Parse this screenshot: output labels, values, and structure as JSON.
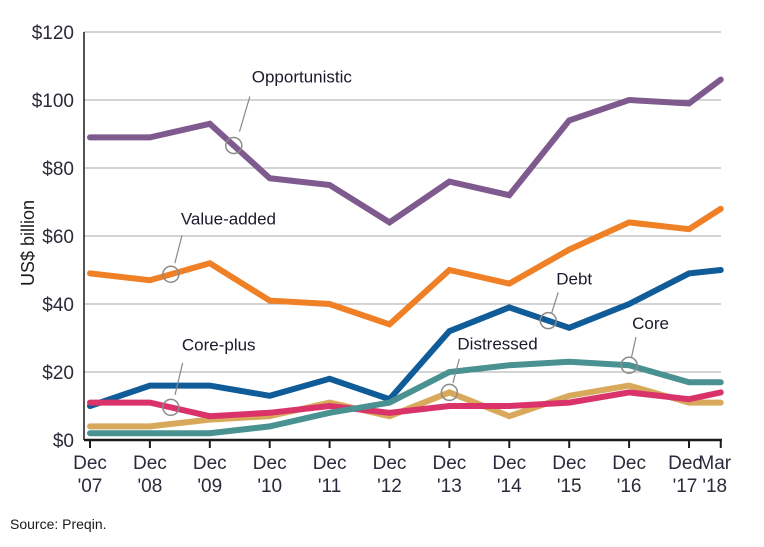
{
  "chart_data": {
    "type": "line",
    "title": "",
    "xlabel": "",
    "ylabel": "US$ billion",
    "ylim": [
      0,
      120
    ],
    "yticks": [
      0,
      20,
      40,
      60,
      80,
      100,
      120
    ],
    "ytick_labels": [
      "$0",
      "$20",
      "$40",
      "$60",
      "$80",
      "$100",
      "$120"
    ],
    "grid": true,
    "legend": "inline-callouts",
    "x": [
      "Dec '07",
      "Dec '08",
      "Dec '09",
      "Dec '10",
      "Dec '11",
      "Dec '12",
      "Dec '13",
      "Dec '14",
      "Dec '15",
      "Dec '16",
      "Dec '17",
      "Mar '18"
    ],
    "x_positions_years": [
      0,
      1,
      2,
      3,
      4,
      5,
      6,
      7,
      8,
      9,
      10,
      10.53
    ],
    "xtick_labels": [
      [
        "Dec",
        "'07"
      ],
      [
        "Dec",
        "'08"
      ],
      [
        "Dec",
        "'09"
      ],
      [
        "Dec",
        "'10"
      ],
      [
        "Dec",
        "'11"
      ],
      [
        "Dec",
        "'12"
      ],
      [
        "Dec",
        "'13"
      ],
      [
        "Dec",
        "'14"
      ],
      [
        "Dec",
        "'15"
      ],
      [
        "Dec",
        "'16"
      ],
      [
        "Dec",
        "'17"
      ],
      [
        "Mar",
        "'18"
      ]
    ],
    "series": [
      {
        "name": "Opportunistic",
        "color": "#7e5a8e",
        "values": [
          89,
          89,
          93,
          77,
          75,
          64,
          76,
          72,
          94,
          100,
          99,
          106
        ],
        "callout_at": 2.4
      },
      {
        "name": "Value-added",
        "color": "#f08026",
        "values": [
          49,
          47,
          52,
          41,
          40,
          34,
          50,
          46,
          56,
          64,
          62,
          68
        ],
        "callout_at": 1.35
      },
      {
        "name": "Debt",
        "color": "#0f5c98",
        "values": [
          10,
          16,
          16,
          13,
          18,
          12,
          32,
          39,
          33,
          40,
          49,
          50
        ],
        "callout_at": 7.65
      },
      {
        "name": "Core",
        "color": "#4a9191",
        "values": [
          2,
          2,
          2,
          4,
          8,
          11,
          20,
          22,
          23,
          22,
          17,
          17
        ],
        "callout_at": 9.0
      },
      {
        "name": "Distressed",
        "color": "#d9a95b",
        "values": [
          4,
          4,
          6,
          7,
          11,
          7,
          14,
          7,
          13,
          16,
          11,
          11
        ],
        "callout_at": 6.0
      },
      {
        "name": "Core-plus",
        "color": "#d9336a",
        "values": [
          11,
          11,
          7,
          8,
          10,
          8,
          10,
          10,
          11,
          14,
          12,
          14
        ],
        "callout_at": 1.35
      }
    ],
    "source": "Source: Preqin."
  }
}
